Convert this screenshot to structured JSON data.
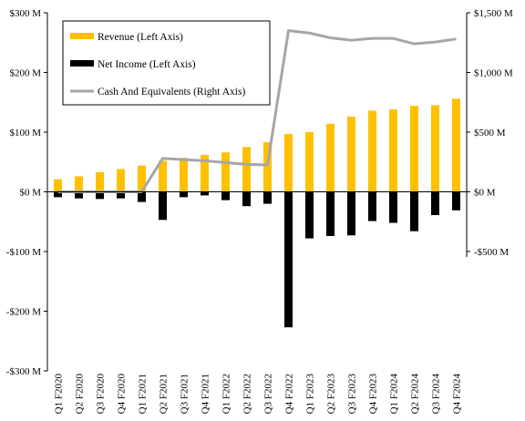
{
  "chart_data": {
    "type": "bar",
    "title": "",
    "xlabel": "",
    "ylabel": "",
    "y2label": "",
    "categories": [
      "Q1 F2020",
      "Q2 F2020",
      "Q3 F2020",
      "Q4 F2020",
      "Q1 F2021",
      "Q2 F2021",
      "Q3 F2021",
      "Q4 F2021",
      "Q1 F2022",
      "Q2 F2022",
      "Q3 F2022",
      "Q4 F2022",
      "Q1 F2023",
      "Q2 F2023",
      "Q3 F2023",
      "Q4 F2023",
      "Q1 F2024",
      "Q2 F2024",
      "Q3 F2024",
      "Q4 F2024"
    ],
    "series": [
      {
        "name": "Revenue (Left Axis)",
        "type": "bar",
        "axis": "left",
        "color": "#ffc000",
        "values": [
          21,
          26,
          33,
          38,
          44,
          52,
          57,
          62,
          66,
          75,
          83,
          97,
          100,
          114,
          126,
          136,
          138,
          144,
          145,
          156
        ]
      },
      {
        "name": "Net Income (Left Axis)",
        "type": "bar",
        "axis": "left",
        "color": "#000000",
        "values": [
          -9,
          -11,
          -12,
          -11,
          -17,
          -47,
          -9,
          -6,
          -14,
          -24,
          -20,
          -227,
          -78,
          -74,
          -73,
          -49,
          -52,
          -66,
          -39,
          -31
        ]
      },
      {
        "name": "Cash And Equivalents (Right Axis)",
        "type": "line",
        "axis": "right",
        "color": "#a6a6a6",
        "values": [
          null,
          null,
          null,
          null,
          null,
          280,
          270,
          260,
          245,
          230,
          225,
          1350,
          1330,
          1290,
          1270,
          1285,
          1285,
          1240,
          1255,
          1280
        ]
      }
    ],
    "ylim": [
      -300,
      300
    ],
    "y2lim": [
      -1500,
      1500
    ],
    "yticks": [
      300,
      200,
      100,
      0,
      -100,
      -200,
      -300
    ],
    "yticklabels": [
      "$300 M",
      "$200 M",
      "$100 M",
      "$0 M",
      "-$100 M",
      "-$200 M",
      "-$300 M"
    ],
    "y2ticks": [
      1500,
      1000,
      500,
      0,
      -500
    ],
    "y2ticklabels": [
      "$1,500 M",
      "$1,000 M",
      "$500 M",
      "$0 M",
      "-$500 M"
    ],
    "grid": false,
    "legend": "top-left"
  }
}
